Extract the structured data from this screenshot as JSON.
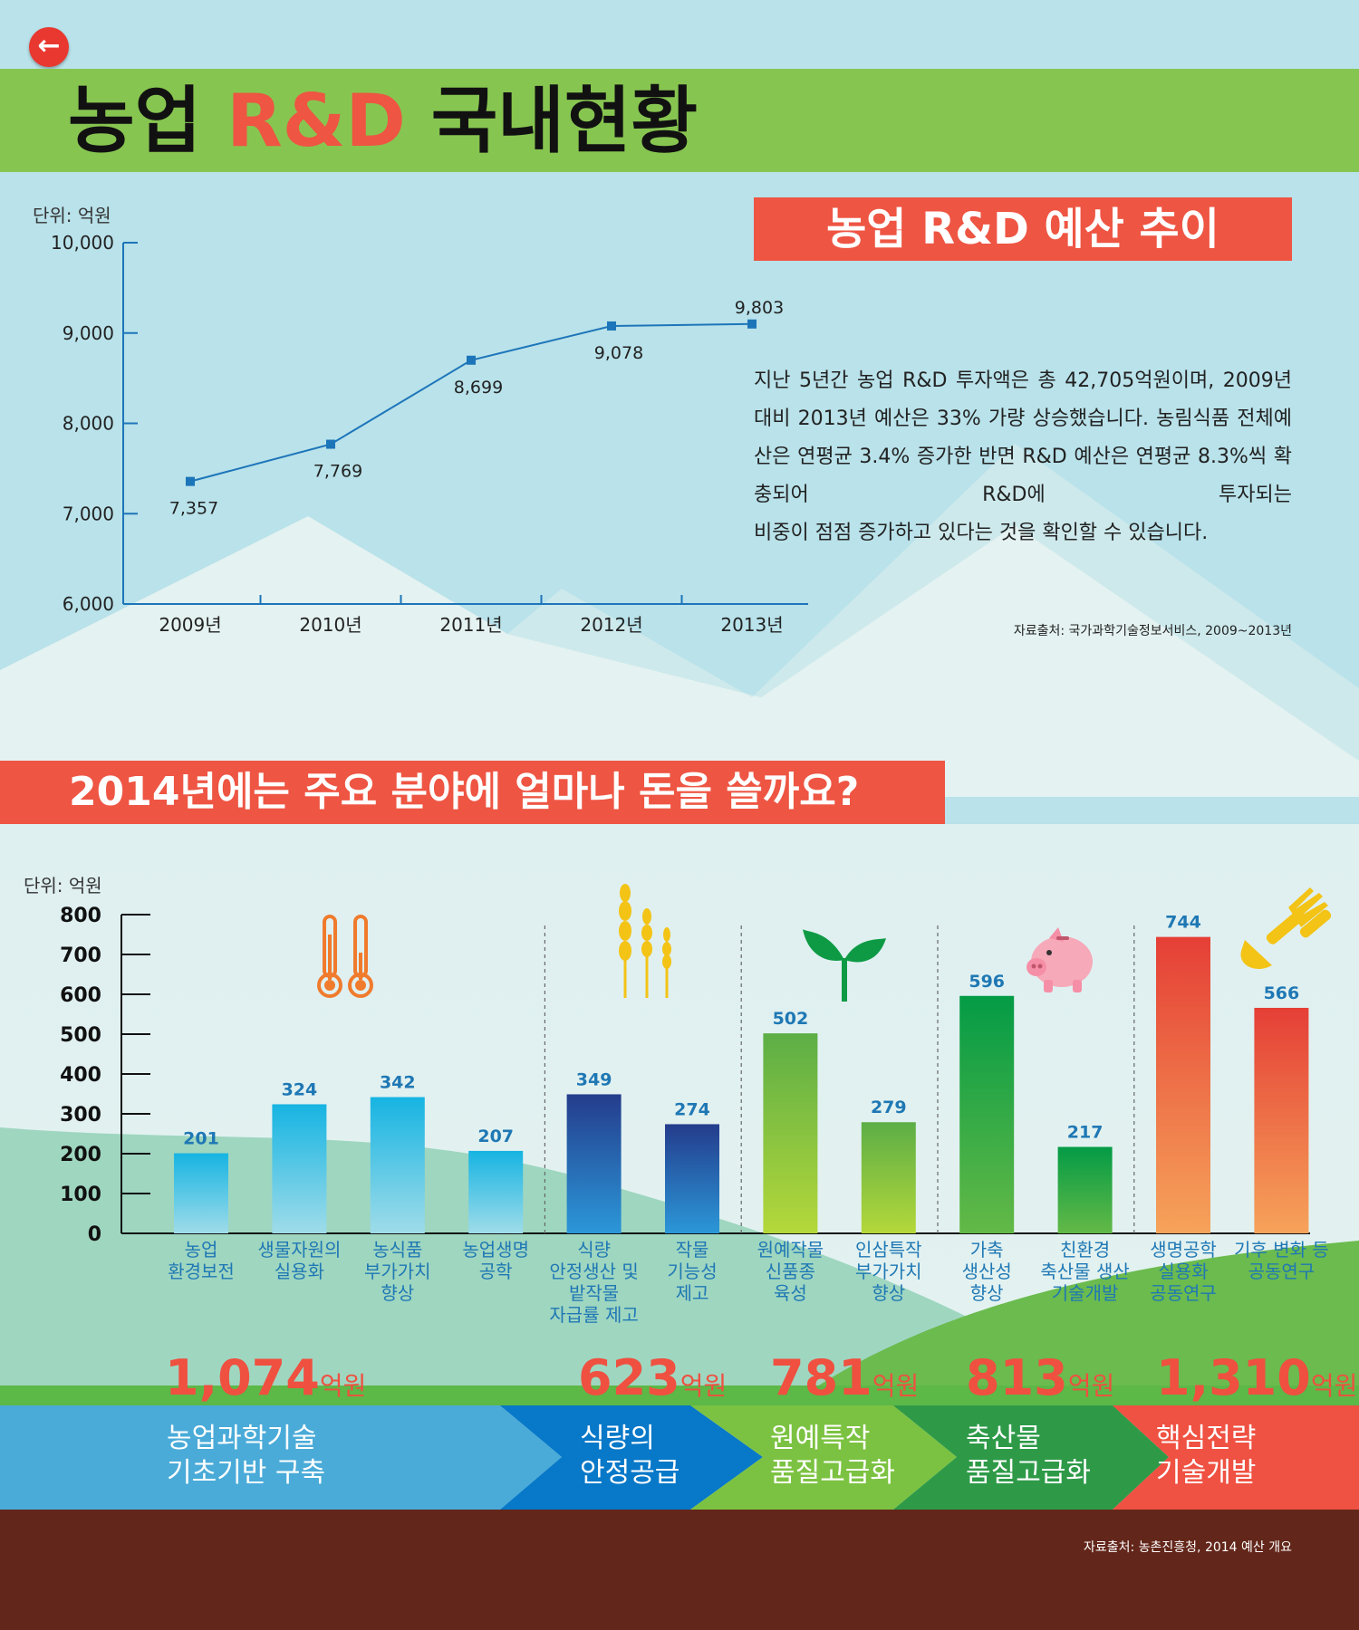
{
  "page": {
    "back_label": "←",
    "title_prefix": "농업 ",
    "title_accent": "R&D",
    "title_suffix": " 국내현황"
  },
  "budget": {
    "header": "농업 R&D 예산 추이",
    "unit": "단위: 억원",
    "description": "지난 5년간 농업 R&D 투자액은 총 42,705억원이며, 2009년 대비 2013년 예산은 33% 가량 상승했습니다. 농림식품 전체예산은 연평균 3.4% 증가한 반면 R&D 예산은 연평균 8.3%씩 확충되어 R&D에 투자되는",
    "description_last": "비중이 점점 증가하고 있다는 것을 확인할 수 있습니다.",
    "source": "자료출처: 국가과학기술정보서비스, 2009~2013년"
  },
  "plan": {
    "header": "2014년에는 주요 분야에 얼마나 돈을 쓸까요?",
    "unit": "단위: 억원",
    "source": "자료출처: 농촌진흥청, 2014 예산 개요",
    "groups": [
      {
        "total": "1,074",
        "unit": "억원",
        "label_line1": "농업과학기술",
        "label_line2": "기초기반 구축",
        "color": "#4aabd8"
      },
      {
        "total": "623",
        "unit": "억원",
        "label_line1": "식량의",
        "label_line2": "안정공급",
        "color": "#0878c8"
      },
      {
        "total": "781",
        "unit": "억원",
        "label_line1": "원예특작",
        "label_line2": "품질고급화",
        "color": "#7cc242"
      },
      {
        "total": "813",
        "unit": "억원",
        "label_line1": "축산물",
        "label_line2": "품질고급화",
        "color": "#2e9a48"
      },
      {
        "total": "1,310",
        "unit": "억원",
        "label_line1": "핵심전략",
        "label_line2": "기술개발",
        "color": "#ef5142"
      }
    ]
  },
  "chart_data": [
    {
      "type": "line",
      "x": [
        "2009년",
        "2010년",
        "2011년",
        "2012년",
        "2013년"
      ],
      "series": [
        {
          "values": [
            7357,
            7769,
            8699,
            9078,
            9803
          ]
        }
      ],
      "value_labels": [
        "7,357",
        "7,769",
        "8,699",
        "9,078",
        "9,803"
      ],
      "yticks": [
        "6,000",
        "7,000",
        "8,000",
        "9,000",
        "10,000"
      ],
      "ylim": [
        6000,
        10000
      ],
      "ylabel": "단위: 억원",
      "colors": {
        "line": "#1d75b9",
        "axis": "#1d75b9"
      }
    },
    {
      "type": "bar",
      "categories": [
        "농업\n환경보전",
        "생물자원의\n실용화",
        "농식품\n부가가치\n향상",
        "농업생명\n공학",
        "식량\n안정생산 및\n밭작물\n자급률 제고",
        "작물\n기능성\n제고",
        "원예작물\n신품종\n육성",
        "인삼특작\n부가가치\n향상",
        "가축\n생산성\n향상",
        "친환경\n축산물 생산\n기술개발",
        "생명공학\n실용화\n공동연구",
        "기후 변화 등\n공동연구"
      ],
      "values": [
        201,
        324,
        342,
        207,
        349,
        274,
        502,
        279,
        596,
        217,
        744,
        566
      ],
      "value_labels": [
        "201",
        "324",
        "342",
        "207",
        "349",
        "274",
        "502",
        "279",
        "596",
        "217",
        "744",
        "566"
      ],
      "group_of_bar": [
        0,
        0,
        0,
        0,
        1,
        1,
        2,
        2,
        3,
        3,
        4,
        4
      ],
      "yticks": [
        "0",
        "100",
        "200",
        "300",
        "400",
        "500",
        "600",
        "700",
        "800"
      ],
      "ylim": [
        0,
        800
      ],
      "ylabel": "단위: 억원",
      "colors": {
        "bar_gradients": [
          [
            "#9fdce9",
            "#16b4e2"
          ],
          [
            "#2b97d8",
            "#243c8c"
          ],
          [
            "#b4d83a",
            "#5cae46"
          ],
          [
            "#63b946",
            "#049b46"
          ],
          [
            "#f6a35a",
            "#e53f36"
          ]
        ],
        "value_label": "#1f78b4",
        "axis": "#111111"
      }
    }
  ]
}
